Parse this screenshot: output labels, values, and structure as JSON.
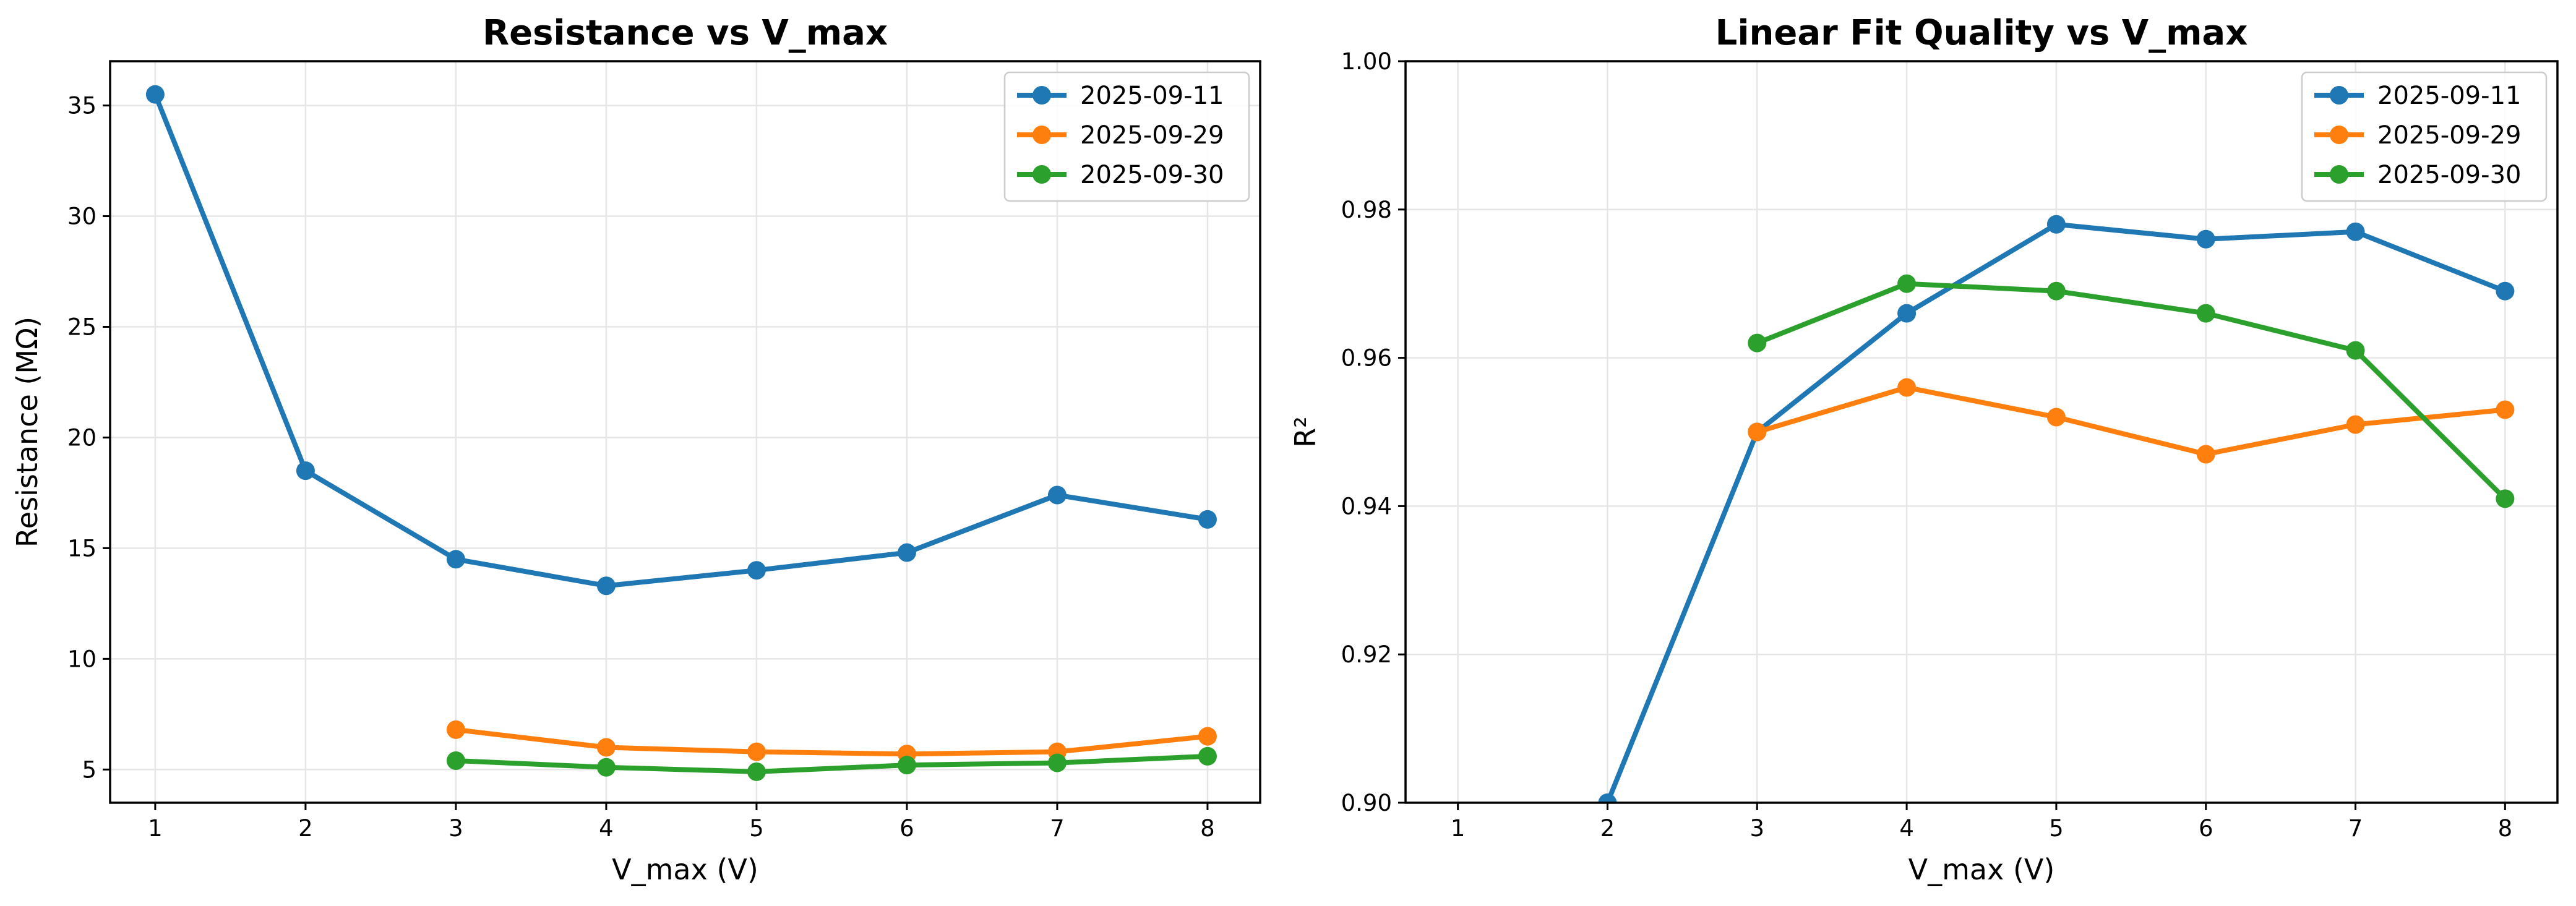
{
  "chart_data": [
    {
      "type": "line",
      "title": "Resistance vs V_max",
      "xlabel": "V_max (V)",
      "ylabel": "Resistance (MΩ)",
      "xlim": [
        0.7,
        8.35
      ],
      "ylim": [
        3.5,
        37.0
      ],
      "xticks": [
        "1",
        "2",
        "3",
        "4",
        "5",
        "6",
        "7",
        "8"
      ],
      "yticks": [
        "5",
        "10",
        "15",
        "20",
        "25",
        "30",
        "35"
      ],
      "grid": true,
      "legend_position": "top-right",
      "series": [
        {
          "name": "2025-09-11",
          "color": "#1f77b4",
          "x": [
            1,
            2,
            3,
            4,
            5,
            6,
            7,
            8
          ],
          "y": [
            35.5,
            18.5,
            14.5,
            13.3,
            14.0,
            14.8,
            17.4,
            16.3
          ]
        },
        {
          "name": "2025-09-29",
          "color": "#ff7f0e",
          "x": [
            3,
            4,
            5,
            6,
            7,
            8
          ],
          "y": [
            6.8,
            6.0,
            5.8,
            5.7,
            5.8,
            6.5
          ]
        },
        {
          "name": "2025-09-30",
          "color": "#2ca02c",
          "x": [
            3,
            4,
            5,
            6,
            7,
            8
          ],
          "y": [
            5.4,
            5.1,
            4.9,
            5.2,
            5.3,
            5.6
          ]
        }
      ]
    },
    {
      "type": "line",
      "title": "Linear Fit Quality vs V_max",
      "xlabel": "V_max (V)",
      "ylabel": "R²",
      "xlim": [
        0.65,
        8.35
      ],
      "ylim": [
        0.9,
        1.0
      ],
      "xticks": [
        "1",
        "2",
        "3",
        "4",
        "5",
        "6",
        "7",
        "8"
      ],
      "yticks": [
        "0.90",
        "0.92",
        "0.94",
        "0.96",
        "0.98",
        "1.00"
      ],
      "grid": true,
      "legend_position": "top-right",
      "series": [
        {
          "name": "2025-09-11",
          "color": "#1f77b4",
          "x": [
            2,
            3,
            4,
            5,
            6,
            7,
            8
          ],
          "y": [
            0.9,
            0.95,
            0.966,
            0.978,
            0.976,
            0.977,
            0.969
          ]
        },
        {
          "name": "2025-09-29",
          "color": "#ff7f0e",
          "x": [
            3,
            4,
            5,
            6,
            7,
            8
          ],
          "y": [
            0.95,
            0.956,
            0.952,
            0.947,
            0.951,
            0.953
          ]
        },
        {
          "name": "2025-09-30",
          "color": "#2ca02c",
          "x": [
            3,
            4,
            5,
            6,
            7,
            8
          ],
          "y": [
            0.962,
            0.97,
            0.969,
            0.966,
            0.961,
            0.941
          ]
        }
      ]
    }
  ]
}
